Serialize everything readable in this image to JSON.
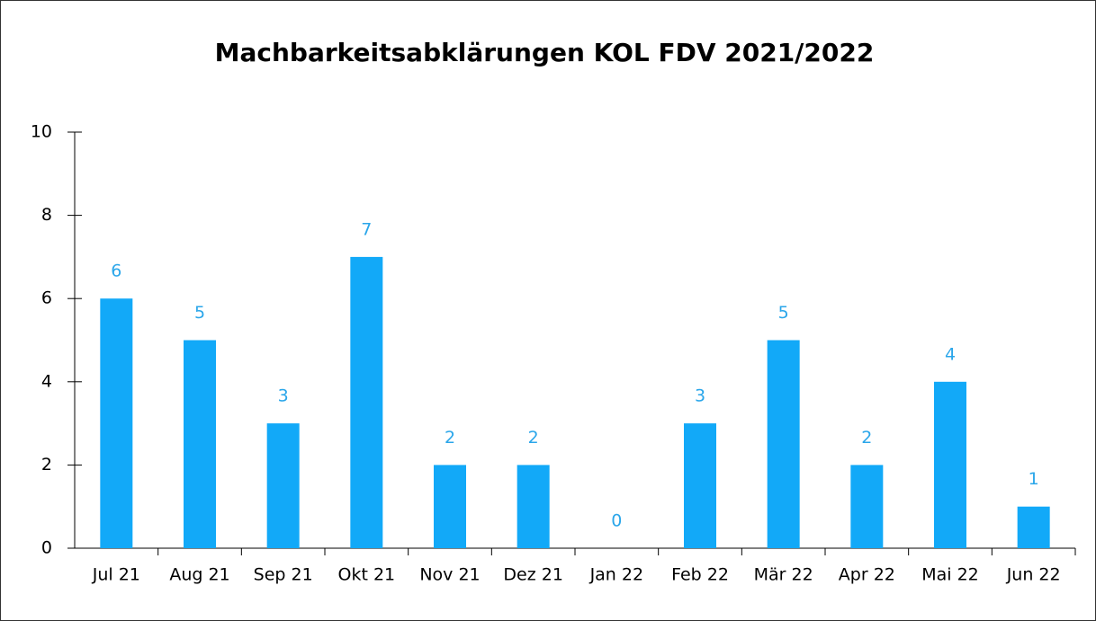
{
  "chart_data": {
    "type": "bar",
    "title": "Machbarkeitsabklärungen KOL FDV 2021/2022",
    "categories": [
      "Jul 21",
      "Aug 21",
      "Sep 21",
      "Okt 21",
      "Nov 21",
      "Dez 21",
      "Jan 22",
      "Feb 22",
      "Mär 22",
      "Apr 22",
      "Mai 22",
      "Jun 22"
    ],
    "values": [
      6,
      5,
      3,
      7,
      2,
      2,
      0,
      3,
      5,
      2,
      4,
      1
    ],
    "color": "#12a9f8",
    "label_color": "#2aa6ea",
    "ylim": [
      0,
      10
    ],
    "yticks": [
      0,
      2,
      4,
      6,
      8,
      10
    ],
    "grid": false
  }
}
